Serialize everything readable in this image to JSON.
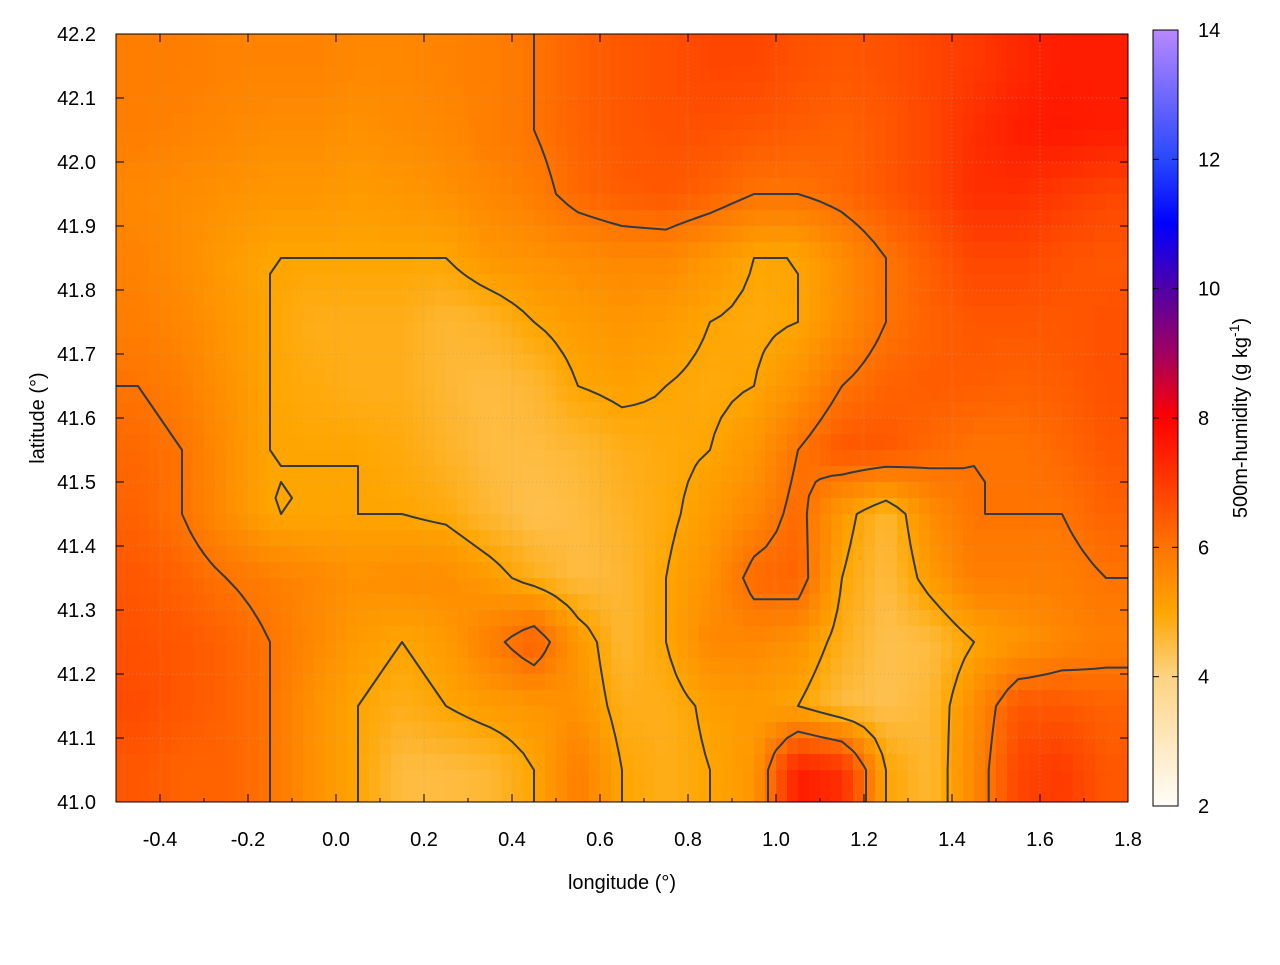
{
  "chart_data": {
    "type": "heatmap",
    "xlabel": "longitude (°)",
    "ylabel": "latitude (°)",
    "colorbar_label": "500m-humidity (g kg",
    "colorbar_label_sup": "-1",
    "colorbar_label_end": ")",
    "xlim": [
      -0.5,
      1.8
    ],
    "ylim": [
      41.0,
      42.2
    ],
    "clim": [
      2,
      14
    ],
    "x_ticks": [
      "-0.4",
      "-0.2",
      "0.0",
      "0.2",
      "0.4",
      "0.6",
      "0.8",
      "1.0",
      "1.2",
      "1.4",
      "1.6",
      "1.8"
    ],
    "y_ticks": [
      "41.0",
      "41.1",
      "41.2",
      "41.3",
      "41.4",
      "41.5",
      "41.6",
      "41.7",
      "41.8",
      "41.9",
      "42.0",
      "42.1",
      "42.2"
    ],
    "colorbar_ticks": [
      "2",
      "4",
      "6",
      "8",
      "10",
      "12",
      "14"
    ],
    "grid": true,
    "contour_levels": [
      5.0,
      6.0
    ],
    "colormap": [
      {
        "v": 2,
        "c": "#fffdf8"
      },
      {
        "v": 4,
        "c": "#fdd383"
      },
      {
        "v": 5,
        "c": "#ffa500"
      },
      {
        "v": 6,
        "c": "#ff7400"
      },
      {
        "v": 7,
        "c": "#ff3a00"
      },
      {
        "v": 8,
        "c": "#ff0000"
      },
      {
        "v": 9,
        "c": "#a00060"
      },
      {
        "v": 10,
        "c": "#5000a8"
      },
      {
        "v": 11,
        "c": "#0000ff"
      },
      {
        "v": 12,
        "c": "#2848ff"
      },
      {
        "v": 14,
        "c": "#b888ff"
      }
    ],
    "grid_lon": [
      -0.45,
      -0.35,
      -0.25,
      -0.15,
      -0.05,
      0.05,
      0.15,
      0.25,
      0.35,
      0.45,
      0.55,
      0.65,
      0.75,
      0.85,
      0.95,
      1.05,
      1.15,
      1.25,
      1.35,
      1.45,
      1.55,
      1.65,
      1.75
    ],
    "grid_lat": [
      42.15,
      42.05,
      41.95,
      41.85,
      41.75,
      41.65,
      41.55,
      41.45,
      41.35,
      41.25,
      41.15,
      41.05
    ],
    "values": [
      [
        5.8,
        5.8,
        5.7,
        5.7,
        5.7,
        5.6,
        5.6,
        5.7,
        5.8,
        6.0,
        6.3,
        6.5,
        6.6,
        6.8,
        6.8,
        6.6,
        6.5,
        6.6,
        6.8,
        7.0,
        7.3,
        7.5,
        7.5
      ],
      [
        5.8,
        5.7,
        5.6,
        5.5,
        5.5,
        5.4,
        5.5,
        5.6,
        5.8,
        6.0,
        6.3,
        6.5,
        6.6,
        6.6,
        6.5,
        6.4,
        6.3,
        6.5,
        6.8,
        7.2,
        7.5,
        7.6,
        7.5
      ],
      [
        5.6,
        5.5,
        5.4,
        5.3,
        5.3,
        5.2,
        5.3,
        5.4,
        5.6,
        5.8,
        6.2,
        6.4,
        6.5,
        6.3,
        6.0,
        6.0,
        6.2,
        6.5,
        6.8,
        7.2,
        7.2,
        7.0,
        6.8
      ],
      [
        5.7,
        5.5,
        5.2,
        5.0,
        5.0,
        5.0,
        5.0,
        5.0,
        5.3,
        5.4,
        5.5,
        5.6,
        5.6,
        5.3,
        5.0,
        5.0,
        5.5,
        6.0,
        6.4,
        6.8,
        6.8,
        6.6,
        6.5
      ],
      [
        5.8,
        5.6,
        5.3,
        5.0,
        4.8,
        4.8,
        4.8,
        4.6,
        4.7,
        5.0,
        5.2,
        5.3,
        5.2,
        5.0,
        4.9,
        5.0,
        5.5,
        6.0,
        6.3,
        6.5,
        6.5,
        6.5,
        6.6
      ],
      [
        6.0,
        5.8,
        5.4,
        5.0,
        4.9,
        4.8,
        4.8,
        4.6,
        4.5,
        4.6,
        5.0,
        5.1,
        5.0,
        4.9,
        5.0,
        5.4,
        6.0,
        6.3,
        6.4,
        6.4,
        6.3,
        6.4,
        6.6
      ],
      [
        6.2,
        6.0,
        5.5,
        5.0,
        5.0,
        5.0,
        4.9,
        4.7,
        4.5,
        4.5,
        4.6,
        4.8,
        4.9,
        5.0,
        5.3,
        6.0,
        6.5,
        6.5,
        6.2,
        6.0,
        6.0,
        6.2,
        6.5
      ],
      [
        6.3,
        6.0,
        5.5,
        5.0,
        5.0,
        5.0,
        5.0,
        4.9,
        4.6,
        4.4,
        4.5,
        4.7,
        4.9,
        5.2,
        5.6,
        6.2,
        5.2,
        4.6,
        5.5,
        6.0,
        6.0,
        6.0,
        6.3
      ],
      [
        6.5,
        6.3,
        6.0,
        5.8,
        5.6,
        5.4,
        5.5,
        5.5,
        5.2,
        4.8,
        4.5,
        4.6,
        5.0,
        5.4,
        6.2,
        6.3,
        5.0,
        4.5,
        5.2,
        5.8,
        5.8,
        5.8,
        6.0
      ],
      [
        6.6,
        6.5,
        6.3,
        6.0,
        5.6,
        5.2,
        5.0,
        5.2,
        5.8,
        6.4,
        5.3,
        4.6,
        5.0,
        5.6,
        5.6,
        5.4,
        4.8,
        4.4,
        4.5,
        5.0,
        5.3,
        5.6,
        5.8
      ],
      [
        6.7,
        6.5,
        6.3,
        6.0,
        5.4,
        5.0,
        4.8,
        5.0,
        5.2,
        5.3,
        5.4,
        4.8,
        4.8,
        5.1,
        5.2,
        5.0,
        4.5,
        4.4,
        4.6,
        5.5,
        6.5,
        6.5,
        6.3
      ],
      [
        6.5,
        6.3,
        6.3,
        6.0,
        5.4,
        5.0,
        4.5,
        4.5,
        4.6,
        5.0,
        5.8,
        5.0,
        4.8,
        5.0,
        5.3,
        7.5,
        7.2,
        5.0,
        4.6,
        5.6,
        6.8,
        7.0,
        6.5
      ]
    ]
  }
}
